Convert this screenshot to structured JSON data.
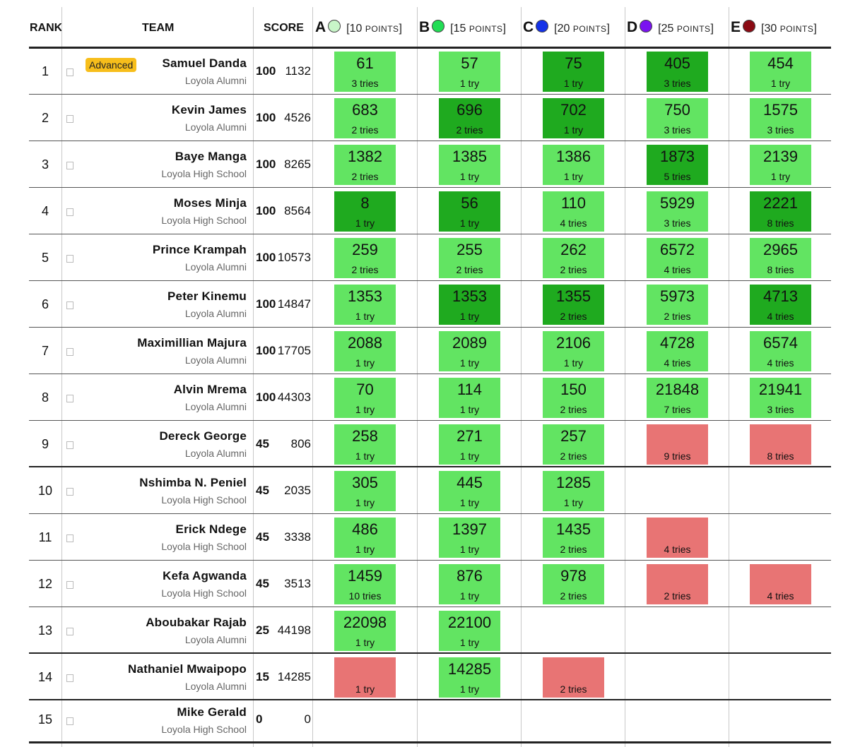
{
  "headers": {
    "rank": "RANK",
    "team": "TEAM",
    "score": "SCORE"
  },
  "problems": [
    {
      "letter": "A",
      "color": "#c8f5c8",
      "pts_open": "[10",
      "pts_unit": "POINTS",
      "pts_close": "]"
    },
    {
      "letter": "B",
      "color": "#22dd55",
      "pts_open": "[15",
      "pts_unit": "POINTS",
      "pts_close": "]"
    },
    {
      "letter": "C",
      "color": "#1432e8",
      "pts_open": "[20",
      "pts_unit": "POINTS",
      "pts_close": "]"
    },
    {
      "letter": "D",
      "color": "#7a12f0",
      "pts_open": "[25",
      "pts_unit": "POINTS",
      "pts_close": "]"
    },
    {
      "letter": "E",
      "color": "#8b0b14",
      "pts_open": "[30",
      "pts_unit": "POINTS",
      "pts_close": "]"
    }
  ],
  "colors": {
    "solved": "#62e462",
    "first_solve": "#1faa1f",
    "failed": "#e87474",
    "badge": "#f7be1b"
  },
  "rows": [
    {
      "rank": "1",
      "name": "Samuel Danda",
      "institution": "Loyola Alumni",
      "badge": "Advanced",
      "points": "100",
      "penalty": "1132",
      "cells": [
        [
          "ok",
          "61",
          "3 tries"
        ],
        [
          "ok",
          "57",
          "1 try"
        ],
        [
          "first",
          "75",
          "1 try"
        ],
        [
          "first",
          "405",
          "3 tries"
        ],
        [
          "ok",
          "454",
          "1 try"
        ]
      ]
    },
    {
      "rank": "2",
      "name": "Kevin James",
      "institution": "Loyola Alumni",
      "points": "100",
      "penalty": "4526",
      "cells": [
        [
          "ok",
          "683",
          "2 tries"
        ],
        [
          "first",
          "696",
          "2 tries"
        ],
        [
          "first",
          "702",
          "1 try"
        ],
        [
          "ok",
          "750",
          "3 tries"
        ],
        [
          "ok",
          "1575",
          "3 tries"
        ]
      ]
    },
    {
      "rank": "3",
      "name": "Baye Manga",
      "institution": "Loyola High School",
      "points": "100",
      "penalty": "8265",
      "cells": [
        [
          "ok",
          "1382",
          "2 tries"
        ],
        [
          "ok",
          "1385",
          "1 try"
        ],
        [
          "ok",
          "1386",
          "1 try"
        ],
        [
          "first",
          "1873",
          "5 tries"
        ],
        [
          "ok",
          "2139",
          "1 try"
        ]
      ]
    },
    {
      "rank": "4",
      "name": "Moses Minja",
      "institution": "Loyola High School",
      "points": "100",
      "penalty": "8564",
      "cells": [
        [
          "first",
          "8",
          "1 try"
        ],
        [
          "first",
          "56",
          "1 try"
        ],
        [
          "ok",
          "110",
          "4 tries"
        ],
        [
          "ok",
          "5929",
          "3 tries"
        ],
        [
          "first",
          "2221",
          "8 tries"
        ]
      ]
    },
    {
      "rank": "5",
      "name": "Prince Krampah",
      "institution": "Loyola Alumni",
      "points": "100",
      "penalty": "10573",
      "cells": [
        [
          "ok",
          "259",
          "2 tries"
        ],
        [
          "ok",
          "255",
          "2 tries"
        ],
        [
          "ok",
          "262",
          "2 tries"
        ],
        [
          "ok",
          "6572",
          "4 tries"
        ],
        [
          "ok",
          "2965",
          "8 tries"
        ]
      ]
    },
    {
      "rank": "6",
      "name": "Peter Kinemu",
      "institution": "Loyola Alumni",
      "points": "100",
      "penalty": "14847",
      "cells": [
        [
          "ok",
          "1353",
          "1 try"
        ],
        [
          "first",
          "1353",
          "1 try"
        ],
        [
          "first",
          "1355",
          "2 tries"
        ],
        [
          "ok",
          "5973",
          "2 tries"
        ],
        [
          "first",
          "4713",
          "4 tries"
        ]
      ]
    },
    {
      "rank": "7",
      "name": "Maximillian Majura",
      "institution": "Loyola Alumni",
      "points": "100",
      "penalty": "17705",
      "cells": [
        [
          "ok",
          "2088",
          "1 try"
        ],
        [
          "ok",
          "2089",
          "1 try"
        ],
        [
          "ok",
          "2106",
          "1 try"
        ],
        [
          "ok",
          "4728",
          "4 tries"
        ],
        [
          "ok",
          "6574",
          "4 tries"
        ]
      ]
    },
    {
      "rank": "8",
      "name": "Alvin Mrema",
      "institution": "Loyola Alumni",
      "points": "100",
      "penalty": "44303",
      "cells": [
        [
          "ok",
          "70",
          "1 try"
        ],
        [
          "ok",
          "114",
          "1 try"
        ],
        [
          "ok",
          "150",
          "2 tries"
        ],
        [
          "ok",
          "21848",
          "7 tries"
        ],
        [
          "ok",
          "21941",
          "3 tries"
        ]
      ]
    },
    {
      "rank": "9",
      "name": "Dereck George",
      "institution": "Loyola Alumni",
      "points": "45",
      "penalty": "806",
      "cells": [
        [
          "ok",
          "258",
          "1 try"
        ],
        [
          "ok",
          "271",
          "1 try"
        ],
        [
          "ok",
          "257",
          "2 tries"
        ],
        [
          "bad",
          "",
          "9 tries"
        ],
        [
          "bad",
          "",
          "8 tries"
        ]
      ]
    },
    {
      "rank": "10",
      "name": "Nshimba N. Peniel",
      "institution": "Loyola High School",
      "points": "45",
      "penalty": "2035",
      "cells": [
        [
          "ok",
          "305",
          "1 try"
        ],
        [
          "ok",
          "445",
          "1 try"
        ],
        [
          "ok",
          "1285",
          "1 try"
        ],
        null,
        null
      ]
    },
    {
      "rank": "11",
      "name": "Erick Ndege",
      "institution": "Loyola High School",
      "points": "45",
      "penalty": "3338",
      "cells": [
        [
          "ok",
          "486",
          "1 try"
        ],
        [
          "ok",
          "1397",
          "1 try"
        ],
        [
          "ok",
          "1435",
          "2 tries"
        ],
        [
          "bad",
          "",
          "4 tries"
        ],
        null
      ]
    },
    {
      "rank": "12",
      "name": "Kefa Agwanda",
      "institution": "Loyola High School",
      "points": "45",
      "penalty": "3513",
      "cells": [
        [
          "ok",
          "1459",
          "10 tries"
        ],
        [
          "ok",
          "876",
          "1 try"
        ],
        [
          "ok",
          "978",
          "2 tries"
        ],
        [
          "bad",
          "",
          "2 tries"
        ],
        [
          "bad",
          "",
          "4 tries"
        ]
      ]
    },
    {
      "rank": "13",
      "name": "Aboubakar Rajab",
      "institution": "Loyola Alumni",
      "points": "25",
      "penalty": "44198",
      "cells": [
        [
          "ok",
          "22098",
          "1 try"
        ],
        [
          "ok",
          "22100",
          "1 try"
        ],
        null,
        null,
        null
      ]
    },
    {
      "rank": "14",
      "name": "Nathaniel Mwaipopo",
      "institution": "Loyola Alumni",
      "points": "15",
      "penalty": "14285",
      "cells": [
        [
          "bad",
          "",
          "1 try"
        ],
        [
          "ok",
          "14285",
          "1 try"
        ],
        [
          "bad",
          "",
          "2 tries"
        ],
        null,
        null
      ]
    },
    {
      "rank": "15",
      "name": "Mike Gerald",
      "institution": "Loyola High School",
      "points": "0",
      "penalty": "0",
      "cells": [
        null,
        null,
        null,
        null,
        null
      ]
    }
  ]
}
